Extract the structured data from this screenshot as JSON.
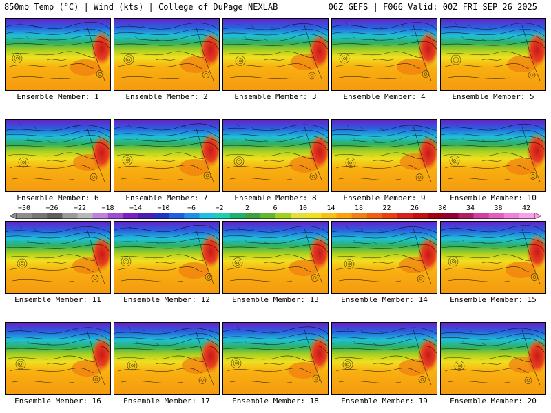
{
  "header": {
    "left_title": "850mb Temp (°C) | Wind (kts) | College of DuPage NEXLAB",
    "right_title": "06Z GEFS | F066 Valid: 00Z FRI SEP 26 2025"
  },
  "colorbar": {
    "labels": [
      "−30",
      "−26",
      "−22",
      "−18",
      "−14",
      "−10",
      "−6",
      "−2",
      "2",
      "6",
      "10",
      "14",
      "18",
      "22",
      "26",
      "30",
      "34",
      "38",
      "42"
    ],
    "colors": [
      "#8e8e8e",
      "#767676",
      "#5e5e5e",
      "#9a9a9a",
      "#b8b8b8",
      "#c080e0",
      "#9d4fd0",
      "#7a1fc0",
      "#4b1fb0",
      "#2233c8",
      "#1f5fe0",
      "#1f8fe8",
      "#1fc0e0",
      "#1fd0b0",
      "#20b070",
      "#40a040",
      "#60b830",
      "#a0d020",
      "#e0e040",
      "#f0e020",
      "#f8c010",
      "#f8a010",
      "#f08010",
      "#f06010",
      "#e84010",
      "#d82020",
      "#c01010",
      "#a00010",
      "#900030",
      "#b02060",
      "#d040a0",
      "#e060c0",
      "#f080d8",
      "#f8a0e8"
    ]
  },
  "members": [
    {
      "label": "Ensemble Member: 1"
    },
    {
      "label": "Ensemble Member: 2"
    },
    {
      "label": "Ensemble Member: 3"
    },
    {
      "label": "Ensemble Member: 4"
    },
    {
      "label": "Ensemble Member: 5"
    },
    {
      "label": "Ensemble Member: 6"
    },
    {
      "label": "Ensemble Member: 7"
    },
    {
      "label": "Ensemble Member: 8"
    },
    {
      "label": "Ensemble Member: 9"
    },
    {
      "label": "Ensemble Member: 10"
    },
    {
      "label": "Ensemble Member: 11"
    },
    {
      "label": "Ensemble Member: 12"
    },
    {
      "label": "Ensemble Member: 13"
    },
    {
      "label": "Ensemble Member: 14"
    },
    {
      "label": "Ensemble Member: 15"
    },
    {
      "label": "Ensemble Member: 16"
    },
    {
      "label": "Ensemble Member: 17"
    },
    {
      "label": "Ensemble Member: 18"
    },
    {
      "label": "Ensemble Member: 19"
    },
    {
      "label": "Ensemble Member: 20"
    }
  ]
}
